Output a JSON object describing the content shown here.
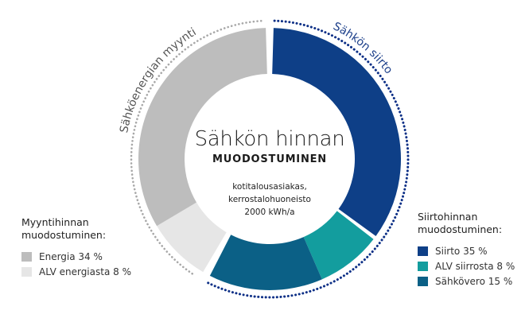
{
  "chart_data": {
    "type": "pie",
    "subtype": "donut",
    "title": "Sähkön hinnan",
    "subtitle": "MUODOSTUMINEN",
    "description": [
      "kotitalousasiakas,",
      "kerrostalohuoneisto",
      "2000 kWh/a"
    ],
    "groups": [
      {
        "name": "Sähköenergian myynti",
        "color": "#b0b0b0",
        "segments": [
          "Energia",
          "ALV energiasta"
        ]
      },
      {
        "name": "Sähkön siirto",
        "color": "#1c3f8a",
        "segments": [
          "Siirto",
          "ALV siirrosta",
          "Sähkövero"
        ]
      }
    ],
    "categories": [
      "Siirto",
      "ALV siirrosta",
      "Sähkövero",
      "ALV energiasta",
      "Energia"
    ],
    "values": [
      35,
      8,
      15,
      8,
      34
    ],
    "unit": "%",
    "colors": [
      "#0e3f87",
      "#139d9e",
      "#0b6086",
      "#e6e6e6",
      "#bdbdbd"
    ],
    "start_angle_deg": 0,
    "direction": "clockwise",
    "legend_position": "left and right"
  },
  "center": {
    "title": "Sähkön hinnan",
    "subtitle": "MUODOSTUMINEN",
    "desc_line1": "kotitalousasiakas,",
    "desc_line2": "kerrostalohuoneisto",
    "desc_line3": "2000 kWh/a"
  },
  "arc_labels": {
    "left": "Sähköenergian myynti",
    "right": "Sähkön siirto"
  },
  "legend_left": {
    "title_line1": "Myyntihinnan",
    "title_line2": "muodostuminen:",
    "items": [
      {
        "label": "Energia 34 %",
        "color": "#bdbdbd"
      },
      {
        "label": "ALV energiasta 8 %",
        "color": "#e6e6e6"
      }
    ]
  },
  "legend_right": {
    "title_line1": "Siirtohinnan",
    "title_line2": "muodostuminen:",
    "items": [
      {
        "label": "Siirto 35 %",
        "color": "#0e3f87"
      },
      {
        "label": "ALV siirrosta 8 %",
        "color": "#139d9e"
      },
      {
        "label": "Sähkövero 15 %",
        "color": "#0b6086"
      }
    ]
  }
}
